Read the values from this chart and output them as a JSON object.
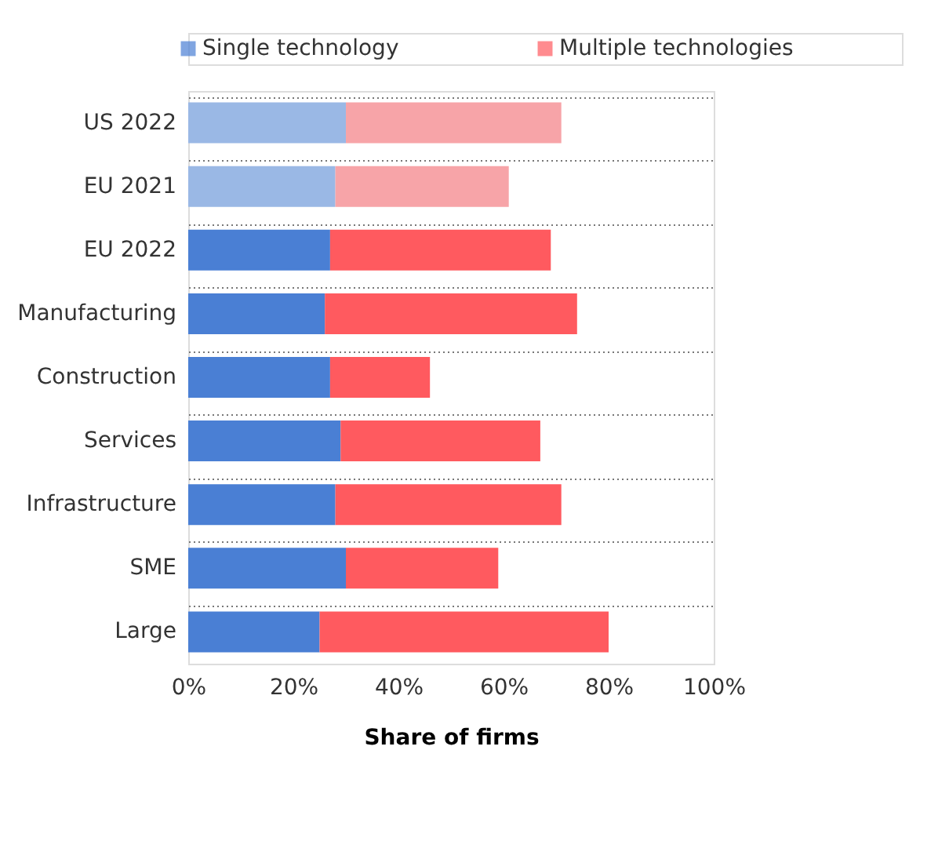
{
  "chart_data": {
    "type": "bar",
    "orientation": "horizontal",
    "stacked": true,
    "xlabel": "Share of firms",
    "categories": [
      "US 2022",
      "EU 2021",
      "EU 2022",
      "Manufacturing",
      "Construction",
      "Services",
      "Infrastructure",
      "SME",
      "Large"
    ],
    "series": [
      {
        "name": "Single technology",
        "color": "#4a7fd4",
        "colors": [
          "#9ab8e5",
          "#9ab8e5",
          "#4a7fd4",
          "#4a7fd4",
          "#4a7fd4",
          "#4a7fd4",
          "#4a7fd4",
          "#4a7fd4",
          "#4a7fd4"
        ],
        "values": [
          30,
          28,
          27,
          26,
          27,
          29,
          28,
          30,
          25
        ]
      },
      {
        "name": "Multiple technologies",
        "color": "#ff5a5f",
        "colors": [
          "#f7a4a8",
          "#f7a4a8",
          "#ff5a5f",
          "#ff5a5f",
          "#ff5a5f",
          "#ff5a5f",
          "#ff5a5f",
          "#ff5a5f",
          "#ff5a5f"
        ],
        "values": [
          41,
          33,
          42,
          48,
          19,
          38,
          43,
          29,
          55
        ]
      }
    ],
    "xlim": [
      0,
      100
    ],
    "xticks": [
      {
        "value": 0,
        "label": "0%"
      },
      {
        "value": 20,
        "label": "20%"
      },
      {
        "value": 40,
        "label": "40%"
      },
      {
        "value": 60,
        "label": "60%"
      },
      {
        "value": 80,
        "label": "80%"
      },
      {
        "value": 100,
        "label": "100%"
      }
    ],
    "grid": "y",
    "legend": "top"
  }
}
